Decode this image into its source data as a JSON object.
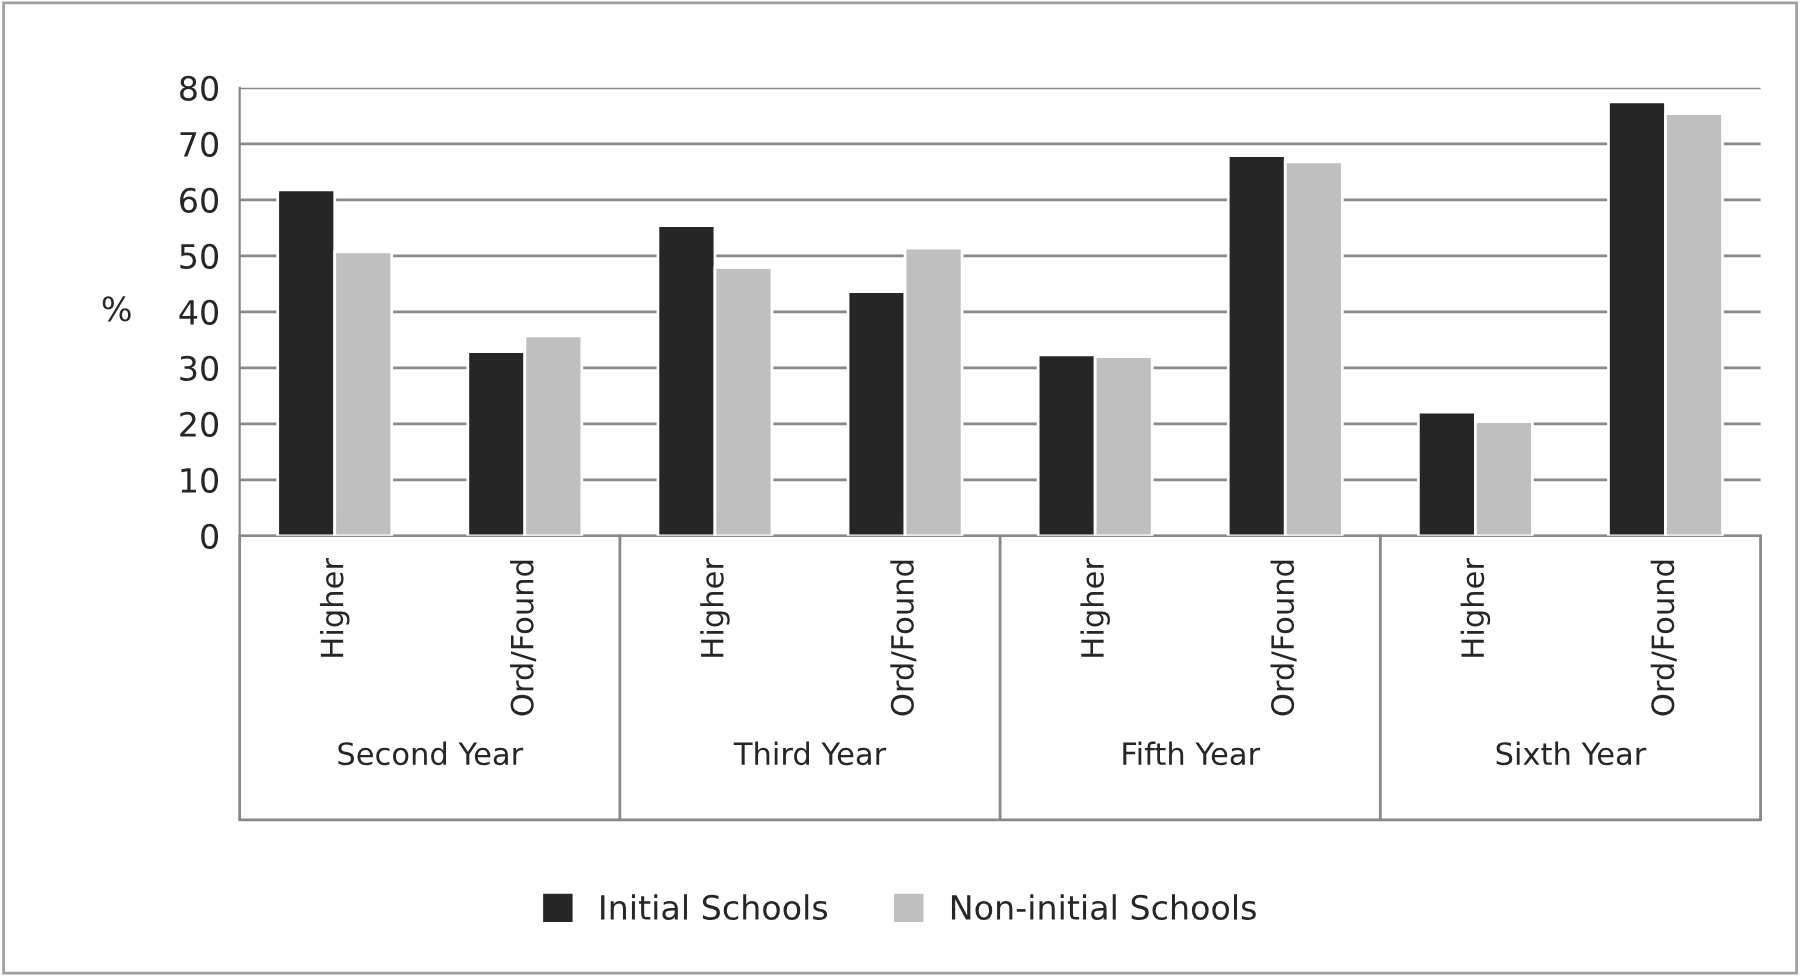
{
  "chart_data": {
    "type": "bar",
    "ylabel": "%",
    "categories": [
      "Higher",
      "Ord/Found",
      "Higher",
      "Ord/Found",
      "Higher",
      "Ord/Found",
      "Higher",
      "Ord/Found"
    ],
    "series": [
      {
        "name": "Initial Schools",
        "color": "#262626",
        "values": [
          61.8,
          32.9,
          55.4,
          43.6,
          32.3,
          67.9,
          22.1,
          77.5
        ]
      },
      {
        "name": "Non-initial Schools",
        "color": "#bfbfbf",
        "values": [
          50.7,
          35.7,
          47.9,
          51.4,
          32.0,
          66.8,
          20.4,
          75.4
        ]
      }
    ],
    "annotations": [
      "Second Year",
      "Third Year",
      "Fifth Year",
      "Sixth Year"
    ],
    "ylim": [
      0,
      80
    ],
    "yticks": [
      0,
      10,
      20,
      30,
      40,
      50,
      60,
      70,
      80
    ],
    "grid": "y",
    "legend": "bottom"
  }
}
